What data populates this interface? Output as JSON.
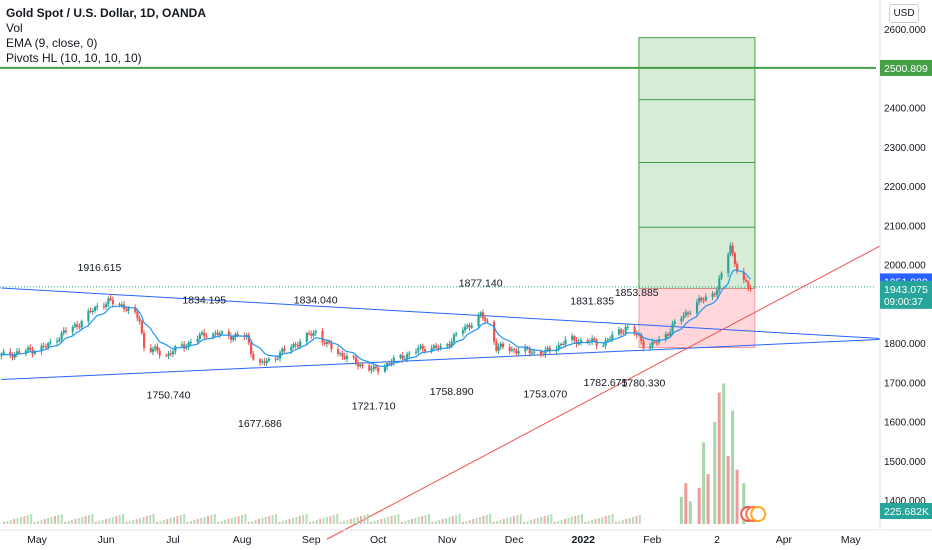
{
  "header": {
    "title": "Gold Spot / U.S. Dollar, 1D, OANDA",
    "indicators": [
      "Vol",
      "EMA (9, close, 0)",
      "Pivots HL (10, 10, 10, 10)"
    ],
    "currency_button": "USD"
  },
  "colors": {
    "up": "#26a69a",
    "down": "#ef5350",
    "ema": "#2196f3",
    "trendline": "#2962ff",
    "redline": "#ef5350",
    "horizontal": "#43a047",
    "target_fill": "#c8e6c9",
    "stop_fill": "#ffcdd2",
    "price_tag": "#26a69a",
    "vol_tag": "#26a69a",
    "current_tag": "#2962ff"
  },
  "chart_data": {
    "type": "candlestick",
    "title": "Gold Spot / U.S. Dollar, 1D, OANDA",
    "xlabel": "",
    "ylabel": "",
    "ylim": [
      1300,
      2650
    ],
    "y_ticks": [
      1400,
      1500,
      1600,
      1700,
      1800,
      1900,
      2000,
      2100,
      2200,
      2300,
      2400,
      2500,
      2600
    ],
    "y_tick_labels": [
      "1400.000",
      "1500.000",
      "1600.000",
      "1700.000",
      "1800.000",
      "1900.000",
      "2000.000",
      "2100.000",
      "2200.000",
      "2300.000",
      "2400.000",
      "2500.000",
      "2600.000"
    ],
    "x_ticks": [
      {
        "label": "May",
        "date": "2021-05-01",
        "bold": false
      },
      {
        "label": "Jun",
        "date": "2021-06-01",
        "bold": false
      },
      {
        "label": "Jul",
        "date": "2021-07-01",
        "bold": false
      },
      {
        "label": "Aug",
        "date": "2021-08-01",
        "bold": false
      },
      {
        "label": "Sep",
        "date": "2021-09-01",
        "bold": false
      },
      {
        "label": "Oct",
        "date": "2021-10-01",
        "bold": false
      },
      {
        "label": "Nov",
        "date": "2021-11-01",
        "bold": false
      },
      {
        "label": "Dec",
        "date": "2021-12-01",
        "bold": false
      },
      {
        "label": "2022",
        "date": "2022-01-01",
        "bold": true
      },
      {
        "label": "Feb",
        "date": "2022-02-01",
        "bold": false
      },
      {
        "label": "2",
        "date": "2022-03-02",
        "bold": false
      },
      {
        "label": "Apr",
        "date": "2022-04-01",
        "bold": false
      },
      {
        "label": "May",
        "date": "2022-05-01",
        "bold": false
      }
    ],
    "close_path": [
      [
        "2021-04-15",
        1768
      ],
      [
        "2021-04-25",
        1778
      ],
      [
        "2021-05-05",
        1790
      ],
      [
        "2021-05-12",
        1822
      ],
      [
        "2021-05-20",
        1850
      ],
      [
        "2021-05-28",
        1895
      ],
      [
        "2021-06-02",
        1905
      ],
      [
        "2021-06-08",
        1897
      ],
      [
        "2021-06-12",
        1880
      ],
      [
        "2021-06-16",
        1860
      ],
      [
        "2021-06-18",
        1790
      ],
      [
        "2021-06-28",
        1770
      ],
      [
        "2021-07-08",
        1800
      ],
      [
        "2021-07-16",
        1825
      ],
      [
        "2021-07-28",
        1818
      ],
      [
        "2021-08-03",
        1815
      ],
      [
        "2021-08-06",
        1765
      ],
      [
        "2021-08-09",
        1745
      ],
      [
        "2021-08-12",
        1753
      ],
      [
        "2021-08-20",
        1780
      ],
      [
        "2021-08-30",
        1815
      ],
      [
        "2021-09-03",
        1830
      ],
      [
        "2021-09-08",
        1795
      ],
      [
        "2021-09-18",
        1758
      ],
      [
        "2021-09-29",
        1730
      ],
      [
        "2021-10-10",
        1760
      ],
      [
        "2021-10-22",
        1790
      ],
      [
        "2021-10-30",
        1785
      ],
      [
        "2021-11-05",
        1820
      ],
      [
        "2021-11-16",
        1870
      ],
      [
        "2021-11-20",
        1845
      ],
      [
        "2021-11-23",
        1790
      ],
      [
        "2021-12-01",
        1782
      ],
      [
        "2021-12-15",
        1775
      ],
      [
        "2021-12-25",
        1808
      ],
      [
        "2022-01-10",
        1800
      ],
      [
        "2022-01-20",
        1840
      ],
      [
        "2022-01-26",
        1815
      ],
      [
        "2022-01-29",
        1788
      ],
      [
        "2022-02-05",
        1808
      ],
      [
        "2022-02-12",
        1855
      ],
      [
        "2022-02-22",
        1905
      ],
      [
        "2022-03-02",
        1935
      ],
      [
        "2022-03-08",
        2050
      ],
      [
        "2022-03-11",
        1985
      ],
      [
        "2022-03-14",
        1952
      ],
      [
        "2022-03-17",
        1943
      ]
    ],
    "volume": {
      "ylim": [
        0,
        60
      ],
      "bars": [
        [
          "2022-02-14",
          12
        ],
        [
          "2022-02-16",
          18
        ],
        [
          "2022-02-18",
          10
        ],
        [
          "2022-02-22",
          16
        ],
        [
          "2022-02-24",
          36
        ],
        [
          "2022-02-26",
          22
        ],
        [
          "2022-03-01",
          45
        ],
        [
          "2022-03-03",
          58
        ],
        [
          "2022-03-05",
          62
        ],
        [
          "2022-03-07",
          30
        ],
        [
          "2022-03-09",
          50
        ],
        [
          "2022-03-11",
          24
        ],
        [
          "2022-03-14",
          18
        ]
      ],
      "last_value": "225.682K"
    },
    "ema_label": "EMA (9, close, 0)",
    "pivots": [
      {
        "label": "1916.615",
        "date": "2021-05-29",
        "price": 1916.615,
        "type": "high"
      },
      {
        "label": "1834.195",
        "date": "2021-07-15",
        "price": 1834.195,
        "type": "high"
      },
      {
        "label": "1834.040",
        "date": "2021-09-03",
        "price": 1834.04,
        "type": "high"
      },
      {
        "label": "1877.140",
        "date": "2021-11-16",
        "price": 1877.14,
        "type": "high"
      },
      {
        "label": "1831.835",
        "date": "2022-01-05",
        "price": 1831.835,
        "type": "high"
      },
      {
        "label": "1853.885",
        "date": "2022-01-25",
        "price": 1853.885,
        "type": "high"
      },
      {
        "label": "1750.740",
        "date": "2021-06-29",
        "price": 1750.74,
        "type": "low"
      },
      {
        "label": "1677.686",
        "date": "2021-08-09",
        "price": 1677.686,
        "type": "low"
      },
      {
        "label": "1721.710",
        "date": "2021-09-29",
        "price": 1721.71,
        "type": "low"
      },
      {
        "label": "1758.890",
        "date": "2021-11-03",
        "price": 1758.89,
        "type": "low"
      },
      {
        "label": "1753.070",
        "date": "2021-12-15",
        "price": 1753.07,
        "type": "low"
      },
      {
        "label": "1782.675",
        "date": "2022-01-11",
        "price": 1782.675,
        "type": "low"
      },
      {
        "label": "1780.330",
        "date": "2022-01-28",
        "price": 1780.33,
        "type": "low"
      }
    ],
    "trendlines": [
      {
        "name": "upper",
        "from": [
          "2021-04-15",
          1940
        ],
        "to": [
          "2022-05-25",
          1808
        ]
      },
      {
        "name": "lower",
        "from": [
          "2021-04-15",
          1707
        ],
        "to": [
          "2022-05-25",
          1812
        ]
      },
      {
        "name": "rising",
        "from": [
          "2021-09-08",
          1300
        ],
        "to": [
          "2022-05-25",
          2080
        ]
      }
    ],
    "horizontal_level": {
      "price": 2500.809,
      "label": "2500.809"
    },
    "position_tool": {
      "start": "2022-01-26",
      "end": "2022-03-19",
      "entry": 1939.0,
      "stop": 1788.0,
      "target": 2578.0,
      "target_levels": [
        2095,
        2260,
        2420
      ]
    },
    "price_tags": [
      {
        "label": "1951.800",
        "price": 1951.8,
        "kind": "current"
      },
      {
        "label": "1943.075",
        "price": 1943.075,
        "kind": "last",
        "countdown": "09:00:37"
      }
    ]
  }
}
